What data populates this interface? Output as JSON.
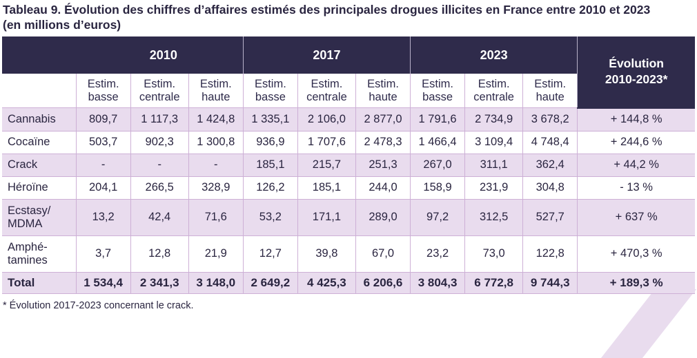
{
  "title_line1": "Tableau 9. Évolution des chiffres d’affaires estimés des principales drogues illicites en France entre 2010 et 2023",
  "title_line2": "(en millions d’euros)",
  "header": {
    "years": [
      "2010",
      "2017",
      "2023"
    ],
    "evolution_line1": "Évolution",
    "evolution_line2": "2010-2023*",
    "sub_line1": "Estim.",
    "subs": [
      "basse",
      "centrale",
      "haute"
    ]
  },
  "rows": [
    {
      "name": "Cannabis",
      "name2": "",
      "values": [
        "809,7",
        "1 117,3",
        "1 424,8",
        "1 335,1",
        "2 106,0",
        "2 877,0",
        "1 791,6",
        "2 734,9",
        "3 678,2"
      ],
      "evolution": "+ 144,8 %"
    },
    {
      "name": "Cocaïne",
      "name2": "",
      "values": [
        "503,7",
        "902,3",
        "1 300,8",
        "936,9",
        "1 707,6",
        "2 478,3",
        "1 466,4",
        "3 109,4",
        "4 748,4"
      ],
      "evolution": "+ 244,6 %"
    },
    {
      "name": "Crack",
      "name2": "",
      "values": [
        "-",
        "-",
        "-",
        "185,1",
        "215,7",
        "251,3",
        "267,0",
        "311,1",
        "362,4"
      ],
      "evolution": "+ 44,2 %"
    },
    {
      "name": "Héroïne",
      "name2": "",
      "values": [
        "204,1",
        "266,5",
        "328,9",
        "126,2",
        "185,1",
        "244,0",
        "158,9",
        "231,9",
        "304,8"
      ],
      "evolution": "- 13 %"
    },
    {
      "name": "Ecstasy/",
      "name2": "MDMA",
      "values": [
        "13,2",
        "42,4",
        "71,6",
        "53,2",
        "171,1",
        "289,0",
        "97,2",
        "312,5",
        "527,7"
      ],
      "evolution": "+ 637 %"
    },
    {
      "name": "Amphé-",
      "name2": "tamines",
      "values": [
        "3,7",
        "12,8",
        "21,9",
        "12,7",
        "39,8",
        "67,0",
        "23,2",
        "73,0",
        "122,8"
      ],
      "evolution": "+ 470,3 %"
    }
  ],
  "total": {
    "name": "Total",
    "values": [
      "1 534,4",
      "2 341,3",
      "3 148,0",
      "2 649,2",
      "4 425,3",
      "6 206,6",
      "3 804,3",
      "6 772,8",
      "9 744,3"
    ],
    "evolution": "+ 189,3 %"
  },
  "footnote": "* Évolution 2017-2023 concernant le crack.",
  "colors": {
    "header_bg": "#2f2b4b",
    "row_shade": "#e9dcee",
    "grid": "#cdb0d6"
  }
}
